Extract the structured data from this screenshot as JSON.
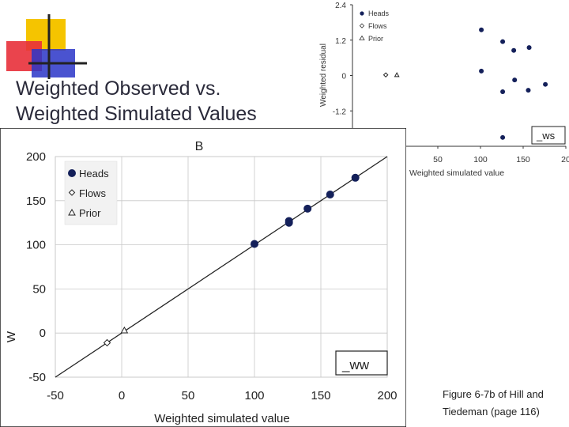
{
  "slide": {
    "title_line1": "Weighted Observed vs.",
    "title_line2": "Weighted Simulated Values",
    "caption_line1": "Figure 6-7b of Hill and",
    "caption_line2": "Tiedeman (page 116)",
    "colors": {
      "accent_yellow": "#f5c400",
      "accent_red": "#e8303a",
      "accent_blue": "#2a35c8",
      "marker": "#14205a"
    }
  },
  "chart_data": [
    {
      "type": "scatter",
      "title": "B",
      "xlabel": "Weighted simulated value",
      "ylabel": "W",
      "xlim": [
        -50,
        200
      ],
      "ylim": [
        -50,
        200
      ],
      "xticks": [
        "-50",
        "0",
        "50",
        "100",
        "150",
        "200"
      ],
      "yticks": [
        "-50",
        "0",
        "50",
        "100",
        "150",
        "200"
      ],
      "annotation": "_ww",
      "legend_position": "top-left",
      "one_to_one_line": true,
      "series": [
        {
          "name": "Heads",
          "marker": "filled-circle",
          "x": [
            100,
            126,
            126,
            140,
            157,
            176
          ],
          "y": [
            101,
            125,
            127,
            141,
            157,
            176
          ]
        },
        {
          "name": "Flows",
          "marker": "open-diamond",
          "x": [
            -11
          ],
          "y": [
            -11
          ]
        },
        {
          "name": "Prior",
          "marker": "open-triangle",
          "x": [
            2
          ],
          "y": [
            3
          ]
        }
      ]
    },
    {
      "type": "scatter",
      "xlabel": "Weighted simulated value",
      "ylabel": "Weighted residual",
      "xlim": [
        -50,
        200
      ],
      "ylim": [
        -2.4,
        2.4
      ],
      "xticks": [
        "50",
        "100",
        "150",
        "20"
      ],
      "yticks": [
        "2.4",
        "1.2",
        "0",
        "-1.2"
      ],
      "annotation": "_ws",
      "legend_position": "top-left",
      "series": [
        {
          "name": "Heads",
          "marker": "filled-circle",
          "x": [
            101,
            126,
            139,
            157,
            101,
            140,
            176,
            126,
            156,
            126
          ],
          "y": [
            1.55,
            1.15,
            0.85,
            0.95,
            0.15,
            -0.15,
            -0.3,
            -0.55,
            -0.5,
            -2.1
          ]
        },
        {
          "name": "Flows",
          "marker": "open-diamond",
          "x": [
            -11
          ],
          "y": [
            0.02
          ]
        },
        {
          "name": "Prior",
          "marker": "open-triangle",
          "x": [
            2
          ],
          "y": [
            0.02
          ]
        }
      ]
    }
  ]
}
